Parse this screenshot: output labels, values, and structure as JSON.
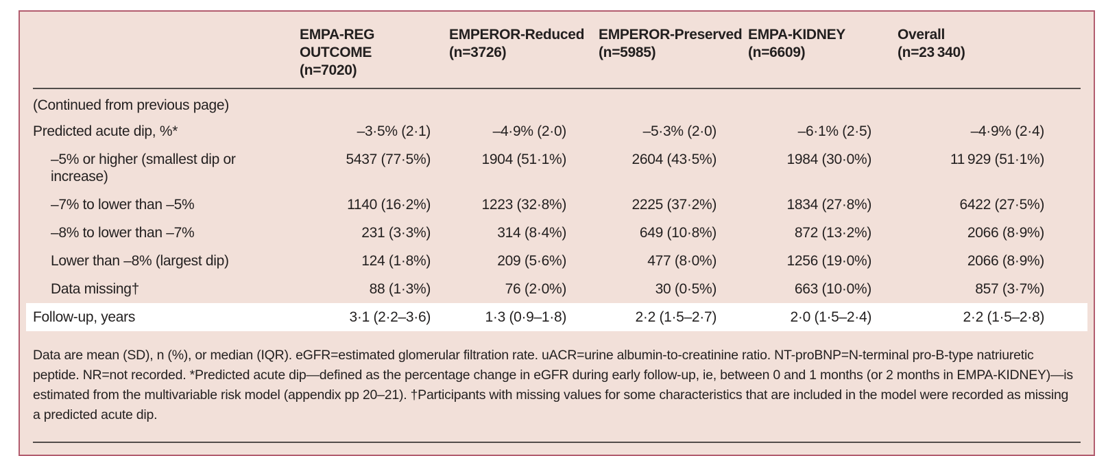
{
  "table": {
    "columns": [
      {
        "label": "EMPA-REG OUTCOME",
        "n": "(n=7020)"
      },
      {
        "label": "EMPEROR-Reduced",
        "n": "(n=3726)"
      },
      {
        "label": "EMPEROR-Preserved",
        "n": "(n=5985)"
      },
      {
        "label": "EMPA-KIDNEY",
        "n": "(n=6609)"
      },
      {
        "label": "Overall",
        "n": "(n=23 340)"
      }
    ],
    "continued_note": "(Continued from previous page)",
    "rows": [
      {
        "label": "Predicted acute dip, %*",
        "values": [
          "–3·5% (2·1)",
          "–4·9% (2·0)",
          "–5·3% (2·0)",
          "–6·1% (2·5)",
          "–4·9% (2·4)"
        ]
      },
      {
        "label": "–5% or higher (smallest dip or increase)",
        "values": [
          "5437 (77·5%)",
          "1904 (51·1%)",
          "2604 (43·5%)",
          "1984 (30·0%)",
          "11 929 (51·1%)"
        ]
      },
      {
        "label": "–7% to lower than –5%",
        "values": [
          "1140 (16·2%)",
          "1223 (32·8%)",
          "2225 (37·2%)",
          "1834 (27·8%)",
          "6422 (27·5%)"
        ]
      },
      {
        "label": "–8% to lower than –7%",
        "values": [
          "231 (3·3%)",
          "314 (8·4%)",
          "649 (10·8%)",
          "872 (13·2%)",
          "2066 (8·9%)"
        ]
      },
      {
        "label": "Lower than –8% (largest dip)",
        "values": [
          "124 (1·8%)",
          "209 (5·6%)",
          "477 (8·0%)",
          "1256 (19·0%)",
          "2066 (8·9%)"
        ]
      },
      {
        "label": "Data missing†",
        "values": [
          "88 (1·3%)",
          "76 (2·0%)",
          "30 (0·5%)",
          "663 (10·0%)",
          "857 (3·7%)"
        ]
      },
      {
        "label": "Follow-up, years",
        "values": [
          "3·1 (2·2–3·6)",
          "1·3 (0·9–1·8)",
          "2·2 (1·5–2·7)",
          "2·0 (1·5–2·4)",
          "2·2 (1·5–2·8)"
        ]
      }
    ],
    "footnote": "Data are mean (SD), n (%), or median (IQR). eGFR=estimated glomerular filtration rate. uACR=urine albumin-to-creatinine ratio. NT-proBNP=N-terminal pro-B-type natriuretic peptide. NR=not recorded. *Predicted acute dip—defined as the percentage change in eGFR during early follow-up, ie, between 0 and 1 months (or 2 months in EMPA-KIDNEY)—is estimated from the multivariable risk model (appendix pp 20–21). †Participants with missing values for some characteristics that are included in the model were recorded as missing a predicted acute dip.",
    "colors": {
      "background": "#f2e0d9",
      "border": "#b25c6e",
      "rule": "#524c4a",
      "highlight_row": "#ffffff",
      "text": "#221f1f"
    }
  }
}
